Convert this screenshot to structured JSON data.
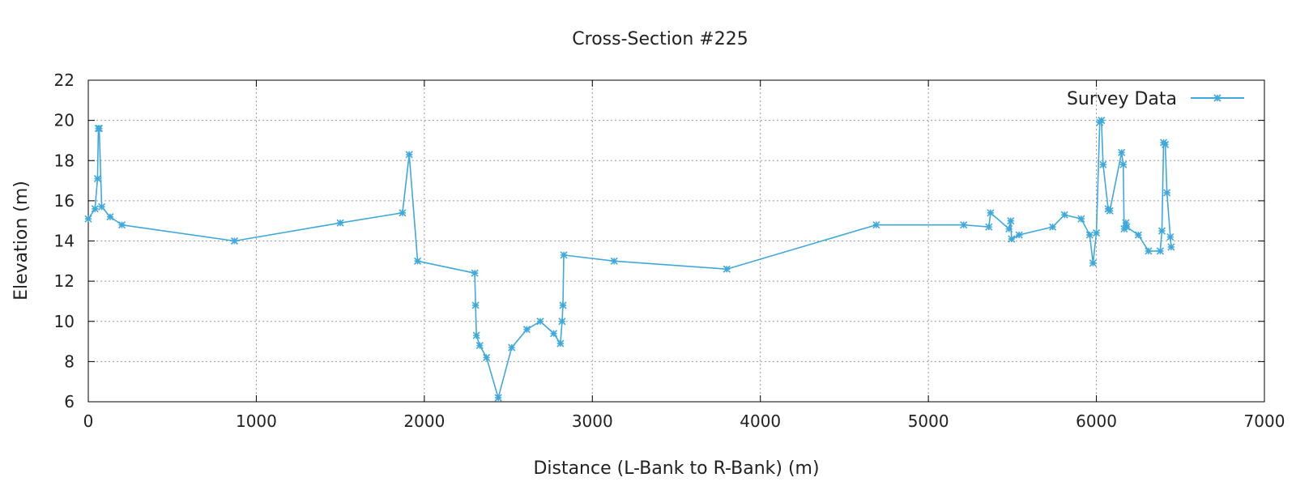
{
  "chart_data": {
    "type": "line",
    "title": "Cross-Section #225",
    "xlabel": "Distance (L-Bank to R-Bank) (m)",
    "ylabel": "Elevation (m)",
    "xlim": [
      0,
      7000
    ],
    "ylim": [
      6,
      22
    ],
    "xticks": [
      0,
      1000,
      2000,
      3000,
      4000,
      5000,
      6000,
      7000
    ],
    "yticks": [
      6,
      8,
      10,
      12,
      14,
      16,
      18,
      20,
      22
    ],
    "grid": true,
    "legend_position": "top-right",
    "colors": {
      "series": "#3fa9dd",
      "axis": "#000000",
      "grid": "#9a9a9a"
    },
    "series": [
      {
        "name": "Survey Data",
        "marker": "star",
        "x": [
          0,
          40,
          55,
          60,
          65,
          80,
          130,
          200,
          870,
          1500,
          1870,
          1910,
          1960,
          2300,
          2305,
          2310,
          2330,
          2370,
          2440,
          2520,
          2610,
          2690,
          2770,
          2810,
          2820,
          2825,
          2830,
          3130,
          3800,
          4690,
          5210,
          5360,
          5370,
          5480,
          5490,
          5495,
          5540,
          5740,
          5810,
          5910,
          5960,
          5980,
          6000,
          6020,
          6030,
          6040,
          6070,
          6080,
          6150,
          6160,
          6165,
          6175,
          6180,
          6250,
          6310,
          6380,
          6390,
          6400,
          6410,
          6420,
          6440,
          6445
        ],
        "y": [
          15.1,
          15.6,
          17.1,
          19.6,
          19.6,
          15.7,
          15.2,
          14.8,
          14.0,
          14.9,
          15.4,
          18.3,
          13.0,
          12.4,
          10.8,
          9.3,
          8.8,
          8.2,
          6.2,
          8.7,
          9.6,
          10.0,
          9.4,
          8.9,
          10.0,
          10.8,
          13.3,
          13.0,
          12.6,
          14.8,
          14.8,
          14.7,
          15.4,
          14.6,
          15.0,
          14.1,
          14.3,
          14.7,
          15.3,
          15.1,
          14.3,
          12.9,
          14.4,
          19.9,
          20.0,
          17.8,
          15.6,
          15.5,
          18.4,
          17.8,
          14.6,
          14.9,
          14.7,
          14.3,
          13.5,
          13.5,
          14.5,
          18.9,
          18.8,
          16.4,
          14.2,
          13.7
        ]
      }
    ]
  }
}
